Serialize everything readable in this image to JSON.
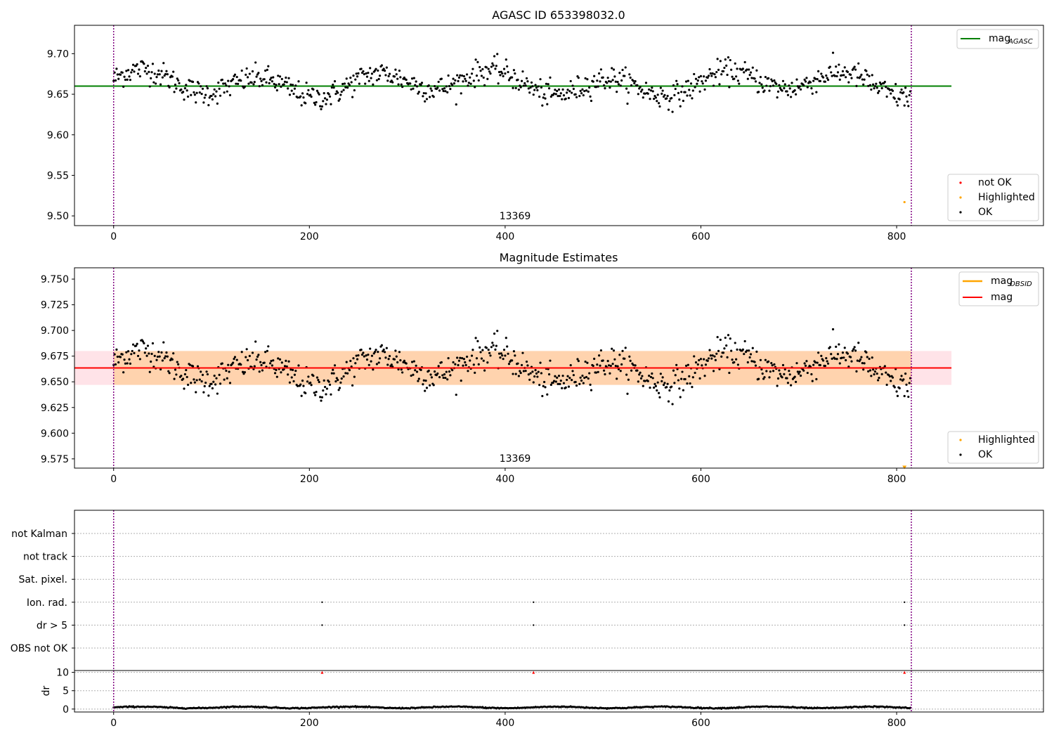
{
  "chart_data": [
    {
      "type": "scatter",
      "title": "AGASC ID 653398032.0",
      "xlim": [
        -40,
        950
      ],
      "ylim": [
        9.488,
        9.735
      ],
      "xticks": [
        0,
        200,
        400,
        600,
        800
      ],
      "xtick_labels": [
        "0",
        "200",
        "400",
        "600",
        "800"
      ],
      "yticks": [
        9.5,
        9.55,
        9.6,
        9.65,
        9.7
      ],
      "ytick_labels": [
        "9.50",
        "9.55",
        "9.60",
        "9.65",
        "9.70"
      ],
      "obsid_label": "13369",
      "obsid_boundaries": [
        0,
        815
      ],
      "mag_agasc_line": {
        "y": 9.66,
        "x_end": 856,
        "color": "#008000"
      },
      "series": [
        {
          "name": "OK",
          "color": "#000000",
          "n": 815,
          "x_range": [
            0,
            814
          ],
          "mean": 9.663,
          "spread": 0.017
        },
        {
          "name": "Highlighted",
          "color": "#ffa500",
          "points": [
            [
              808,
              9.517
            ]
          ]
        },
        {
          "name": "not OK",
          "color": "#ff0000",
          "points": []
        }
      ],
      "legend_upper": {
        "entries": [
          "mag"
        ],
        "subscript": "AGASC",
        "position": "top-right"
      },
      "legend_lower": {
        "entries": [
          "not OK",
          "Highlighted",
          "OK"
        ],
        "position": "bottom-right"
      }
    },
    {
      "type": "scatter",
      "title": "Magnitude Estimates",
      "xlim": [
        -40,
        950
      ],
      "ylim": [
        9.566,
        9.761
      ],
      "xticks": [
        0,
        200,
        400,
        600,
        800
      ],
      "xtick_labels": [
        "0",
        "200",
        "400",
        "600",
        "800"
      ],
      "yticks": [
        9.575,
        9.6,
        9.625,
        9.65,
        9.675,
        9.7,
        9.725,
        9.75
      ],
      "ytick_labels": [
        "9.575",
        "9.600",
        "9.625",
        "9.650",
        "9.675",
        "9.700",
        "9.725",
        "9.750"
      ],
      "obsid_label": "13369",
      "obsid_boundaries": [
        0,
        815
      ],
      "mag_line": {
        "y": 9.6635,
        "x_end": 856,
        "color": "#ff0000"
      },
      "mag_band": {
        "y_low": 9.647,
        "y_high": 9.68,
        "x_start": -40,
        "x_end": 856,
        "color": "#ffc0cb"
      },
      "mag_obsid_band": {
        "y_low": 9.647,
        "y_high": 9.68,
        "x_start": 0,
        "x_end": 815,
        "color": "#ffa500"
      },
      "series": [
        {
          "name": "OK",
          "color": "#000000",
          "n": 815,
          "x_range": [
            0,
            814
          ],
          "mean": 9.663,
          "spread": 0.017
        },
        {
          "name": "Highlighted",
          "color": "#ffa500",
          "points": [
            [
              808,
              9.567
            ]
          ]
        }
      ],
      "legend_upper": {
        "entries": [
          "mag",
          "mag"
        ],
        "subscript": "OBSID",
        "position": "top-right"
      },
      "legend_lower": {
        "entries": [
          "Highlighted",
          "OK"
        ],
        "position": "bottom-right"
      }
    },
    {
      "type": "scatter",
      "title": "",
      "xlim": [
        -40,
        950
      ],
      "categories": [
        "not Kalman",
        "not track",
        "Sat. pixel.",
        "Ion. rad.",
        "dr > 5",
        "OBS not OK"
      ],
      "flag_points": {
        "Ion. rad.": [
          213,
          429,
          808
        ],
        "dr > 5": [
          213,
          429,
          808
        ]
      },
      "obsid_boundaries": [
        0,
        815
      ]
    },
    {
      "type": "scatter",
      "ylabel": "dr",
      "xlim": [
        -40,
        950
      ],
      "ylim": [
        -0.8,
        10.5
      ],
      "yticks": [
        0,
        5,
        10
      ],
      "ytick_labels": [
        "0",
        "5",
        "10"
      ],
      "xticks": [
        0,
        200,
        400,
        600,
        800
      ],
      "xtick_labels": [
        "0",
        "200",
        "400",
        "600",
        "800"
      ],
      "dr_series": {
        "name": "dr",
        "color": "#000000",
        "n": 815,
        "x_range": [
          0,
          814
        ],
        "mean": 0.45,
        "spread": 0.25
      },
      "clipped_points": {
        "color": "#ff0000",
        "x": [
          213,
          429,
          808
        ],
        "y": 10
      },
      "obsid_boundaries": [
        0,
        815
      ]
    }
  ]
}
